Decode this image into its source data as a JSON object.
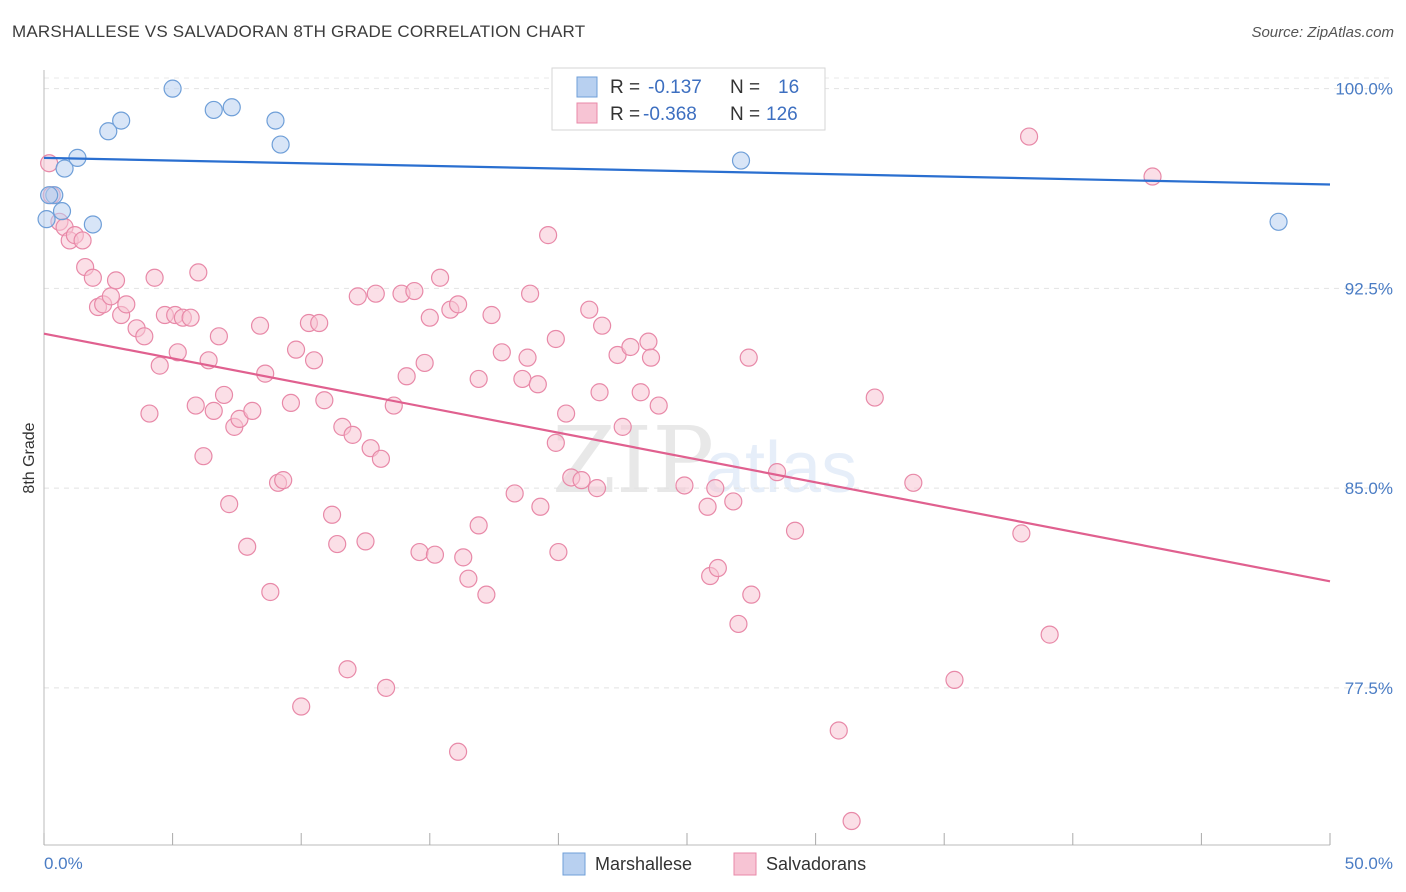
{
  "title": "MARSHALLESE VS SALVADORAN 8TH GRADE CORRELATION CHART",
  "source": "Source: ZipAtlas.com",
  "watermark": {
    "zip": "ZIP",
    "atlas": "atlas"
  },
  "colors": {
    "blue": "#6f9fd8",
    "blue_fill": "#b8d0f0",
    "blue_line": "#2a6fd0",
    "pink": "#e889a8",
    "pink_fill": "#f7c4d4",
    "pink_line": "#e0608f",
    "tick_text": "#4a7cc4"
  },
  "legend": {
    "rows": [
      {
        "r_label": "R =",
        "r_value": "-0.137",
        "n_label": "N =",
        "n_value": "16"
      },
      {
        "r_label": "R =",
        "r_value": "-0.368",
        "n_label": "N =",
        "n_value": "126"
      }
    ]
  },
  "bottom_legend": [
    "Marshallese",
    "Salvadorans"
  ],
  "chart_data": {
    "type": "scatter",
    "title": "MARSHALLESE VS SALVADORAN 8TH GRADE CORRELATION CHART",
    "xlabel": "",
    "ylabel": "8th Grade",
    "xlim": [
      0,
      50
    ],
    "ylim": [
      71.6,
      100.7
    ],
    "x_tick_labels": [
      "0.0%",
      "50.0%"
    ],
    "y_ticks": [
      77.5,
      85.0,
      92.5,
      100.0
    ],
    "y_tick_labels": [
      "77.5%",
      "85.0%",
      "92.5%",
      "100.0%"
    ],
    "grid": true,
    "series": [
      {
        "name": "Marshallese",
        "r": -0.137,
        "n": 16,
        "trend": {
          "x": [
            0,
            50
          ],
          "y": [
            97.4,
            96.4
          ]
        },
        "points": [
          [
            0.1,
            95.1
          ],
          [
            0.4,
            96.0
          ],
          [
            0.7,
            95.4
          ],
          [
            0.8,
            97.0
          ],
          [
            1.3,
            97.4
          ],
          [
            1.9,
            94.9
          ],
          [
            2.5,
            98.4
          ],
          [
            3.0,
            98.8
          ],
          [
            5.0,
            100.0
          ],
          [
            6.6,
            99.2
          ],
          [
            7.3,
            99.3
          ],
          [
            9.0,
            98.8
          ],
          [
            9.2,
            97.9
          ],
          [
            27.1,
            97.3
          ],
          [
            48.0,
            95.0
          ],
          [
            0.2,
            96.0
          ]
        ]
      },
      {
        "name": "Salvadorans",
        "r": -0.368,
        "n": 126,
        "trend": {
          "x": [
            0,
            50
          ],
          "y": [
            90.8,
            81.5
          ]
        },
        "points": [
          [
            0.2,
            97.2
          ],
          [
            0.3,
            96.0
          ],
          [
            0.6,
            95.0
          ],
          [
            0.8,
            94.8
          ],
          [
            1.0,
            94.3
          ],
          [
            1.2,
            94.5
          ],
          [
            1.5,
            94.3
          ],
          [
            1.6,
            93.3
          ],
          [
            1.9,
            92.9
          ],
          [
            2.1,
            91.8
          ],
          [
            2.3,
            91.9
          ],
          [
            2.6,
            92.2
          ],
          [
            2.8,
            92.8
          ],
          [
            3.0,
            91.5
          ],
          [
            3.2,
            91.9
          ],
          [
            3.6,
            91.0
          ],
          [
            3.9,
            90.7
          ],
          [
            4.1,
            87.8
          ],
          [
            4.3,
            92.9
          ],
          [
            4.5,
            89.6
          ],
          [
            4.7,
            91.5
          ],
          [
            5.1,
            91.5
          ],
          [
            5.2,
            90.1
          ],
          [
            5.4,
            91.4
          ],
          [
            5.7,
            91.4
          ],
          [
            5.9,
            88.1
          ],
          [
            6.0,
            93.1
          ],
          [
            6.2,
            86.2
          ],
          [
            6.4,
            89.8
          ],
          [
            6.6,
            87.9
          ],
          [
            6.8,
            90.7
          ],
          [
            7.0,
            88.5
          ],
          [
            7.2,
            84.4
          ],
          [
            7.4,
            87.3
          ],
          [
            7.6,
            87.6
          ],
          [
            7.9,
            82.8
          ],
          [
            8.1,
            87.9
          ],
          [
            8.4,
            91.1
          ],
          [
            8.6,
            89.3
          ],
          [
            8.8,
            81.1
          ],
          [
            9.1,
            85.2
          ],
          [
            9.3,
            85.3
          ],
          [
            9.6,
            88.2
          ],
          [
            9.8,
            90.2
          ],
          [
            10.0,
            76.8
          ],
          [
            10.3,
            91.2
          ],
          [
            10.5,
            89.8
          ],
          [
            10.7,
            91.2
          ],
          [
            10.9,
            88.3
          ],
          [
            11.2,
            84.0
          ],
          [
            11.4,
            82.9
          ],
          [
            11.6,
            87.3
          ],
          [
            11.8,
            78.2
          ],
          [
            12.0,
            87.0
          ],
          [
            12.2,
            92.2
          ],
          [
            12.5,
            83.0
          ],
          [
            12.7,
            86.5
          ],
          [
            12.9,
            92.3
          ],
          [
            13.1,
            86.1
          ],
          [
            13.3,
            77.5
          ],
          [
            13.6,
            88.1
          ],
          [
            13.9,
            92.3
          ],
          [
            14.1,
            89.2
          ],
          [
            14.4,
            92.4
          ],
          [
            14.6,
            82.6
          ],
          [
            14.8,
            89.7
          ],
          [
            15.0,
            91.4
          ],
          [
            15.2,
            82.5
          ],
          [
            15.4,
            92.9
          ],
          [
            15.8,
            91.7
          ],
          [
            16.1,
            91.9
          ],
          [
            16.1,
            75.1
          ],
          [
            16.3,
            82.4
          ],
          [
            16.5,
            81.6
          ],
          [
            16.9,
            83.6
          ],
          [
            16.9,
            89.1
          ],
          [
            17.2,
            81.0
          ],
          [
            17.4,
            91.5
          ],
          [
            17.8,
            90.1
          ],
          [
            18.3,
            84.8
          ],
          [
            18.6,
            89.1
          ],
          [
            18.8,
            89.9
          ],
          [
            18.9,
            92.3
          ],
          [
            19.2,
            88.9
          ],
          [
            19.3,
            84.3
          ],
          [
            19.6,
            94.5
          ],
          [
            19.9,
            86.7
          ],
          [
            19.9,
            90.6
          ],
          [
            20.0,
            82.6
          ],
          [
            20.3,
            87.8
          ],
          [
            20.5,
            85.4
          ],
          [
            20.9,
            85.3
          ],
          [
            21.2,
            91.7
          ],
          [
            21.5,
            85.0
          ],
          [
            21.6,
            88.6
          ],
          [
            21.7,
            91.1
          ],
          [
            22.3,
            90.0
          ],
          [
            22.5,
            87.3
          ],
          [
            22.8,
            90.3
          ],
          [
            23.2,
            88.6
          ],
          [
            23.5,
            90.5
          ],
          [
            23.6,
            89.9
          ],
          [
            23.9,
            88.1
          ],
          [
            24.9,
            85.1
          ],
          [
            25.8,
            84.3
          ],
          [
            25.9,
            81.7
          ],
          [
            26.1,
            85.0
          ],
          [
            26.2,
            82.0
          ],
          [
            26.8,
            84.5
          ],
          [
            27.0,
            79.9
          ],
          [
            27.4,
            89.9
          ],
          [
            27.5,
            81.0
          ],
          [
            28.5,
            85.6
          ],
          [
            29.2,
            83.4
          ],
          [
            30.9,
            75.9
          ],
          [
            31.4,
            72.5
          ],
          [
            32.3,
            88.4
          ],
          [
            33.8,
            85.2
          ],
          [
            35.4,
            77.8
          ],
          [
            38.0,
            83.3
          ],
          [
            38.3,
            98.2
          ],
          [
            39.1,
            79.5
          ],
          [
            43.1,
            96.7
          ],
          [
            24.3,
            100.0
          ]
        ]
      }
    ]
  }
}
